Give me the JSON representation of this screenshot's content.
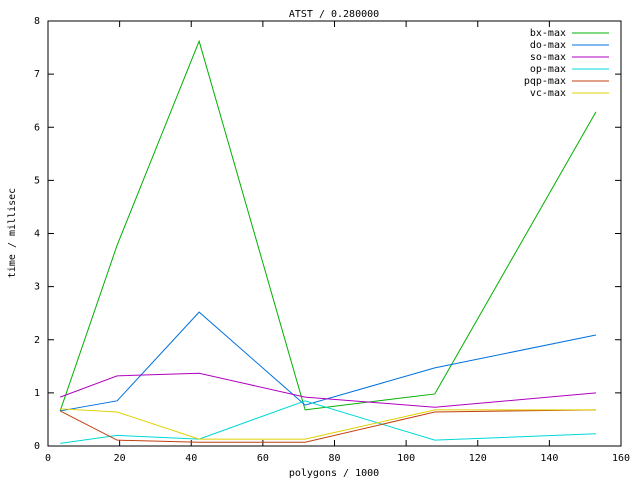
{
  "chart_data": {
    "type": "line",
    "title": "ATST / 0.280000",
    "x_label": "polygons / 1000",
    "y_label": "time / millisec",
    "x": [
      3.4,
      19.3,
      42.2,
      71.8,
      108,
      153
    ],
    "series": [
      {
        "name": "bx-max",
        "color": "#00b000",
        "values": [
          0.66,
          3.78,
          7.62,
          0.68,
          0.98,
          6.29
        ]
      },
      {
        "name": "do-max",
        "color": "#0070e0",
        "values": [
          0.66,
          0.85,
          2.52,
          0.77,
          1.47,
          2.09
        ]
      },
      {
        "name": "so-max",
        "color": "#b000c0",
        "values": [
          0.92,
          1.32,
          1.37,
          0.92,
          0.73,
          1.0
        ]
      },
      {
        "name": "op-max",
        "color": "#00d8d8",
        "values": [
          0.05,
          0.2,
          0.13,
          0.85,
          0.11,
          0.23
        ]
      },
      {
        "name": "pqp-max",
        "color": "#c04010",
        "values": [
          0.66,
          0.11,
          0.07,
          0.07,
          0.64,
          0.68
        ]
      },
      {
        "name": "vc-max",
        "color": "#e0d000",
        "values": [
          0.7,
          0.64,
          0.13,
          0.13,
          0.68,
          0.68
        ]
      }
    ],
    "xlim": [
      0,
      160
    ],
    "xticks": [
      0,
      20,
      40,
      60,
      80,
      100,
      120,
      140,
      160
    ],
    "ylim": [
      0,
      8
    ],
    "yticks": [
      0,
      1,
      2,
      3,
      4,
      5,
      6,
      7,
      8
    ],
    "legend": "top-right"
  }
}
